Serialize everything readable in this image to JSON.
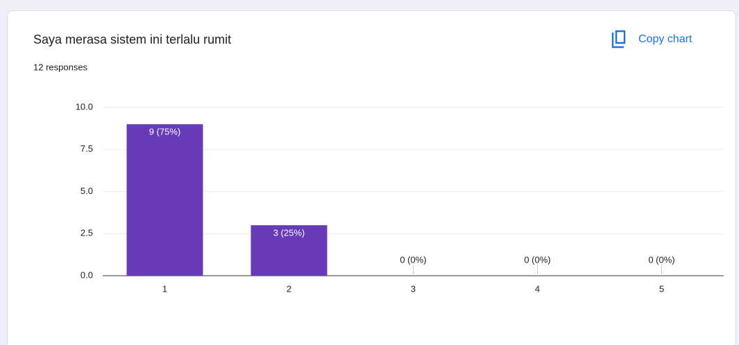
{
  "chart_data": {
    "type": "bar",
    "title": "Saya merasa sistem ini terlalu rumit",
    "subtitle": "12 responses",
    "button": "Copy chart",
    "categories": [
      "1",
      "2",
      "3",
      "4",
      "5"
    ],
    "values": [
      9,
      3,
      0,
      0,
      0
    ],
    "value_labels": [
      "9 (75%)",
      "3 (25%)",
      "0 (0%)",
      "0 (0%)",
      "0 (0%)"
    ],
    "color": "#673ab7",
    "ylim": [
      0,
      10
    ],
    "yticks": [
      {
        "value": 0,
        "label": "0.0"
      },
      {
        "value": 2.5,
        "label": "2.5"
      },
      {
        "value": 5,
        "label": "5.0"
      },
      {
        "value": 7.5,
        "label": "7.5"
      },
      {
        "value": 10,
        "label": "10.0"
      }
    ],
    "grid": true
  }
}
